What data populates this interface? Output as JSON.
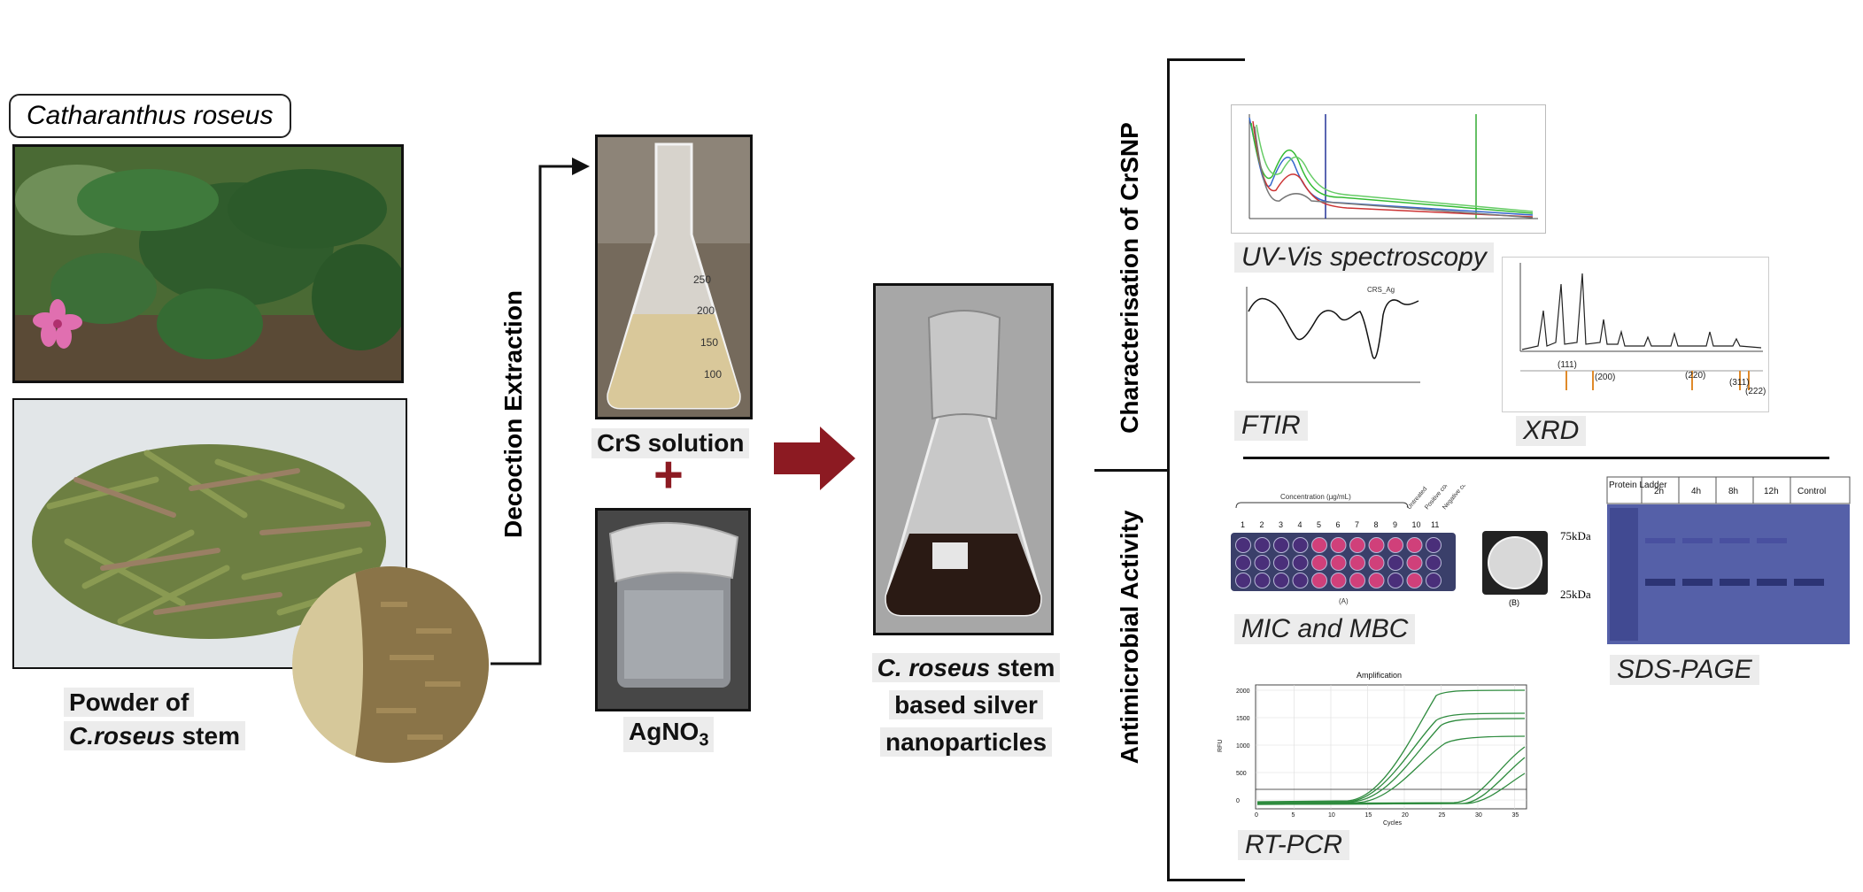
{
  "plant_label": "Catharanthus roseus",
  "powder_caption": {
    "line1": "Powder of",
    "line2_italic": "C.roseus",
    "line2_rest": " stem"
  },
  "extraction_label": "Decoction Extraction",
  "crs_caption": "CrS solution",
  "agno3_caption": {
    "base": "AgNO",
    "sub": "3"
  },
  "plus_sign": "+",
  "flask_marks": {
    "m250": "250",
    "m200": "200",
    "m150": "150",
    "m100": "100"
  },
  "product_caption": {
    "line1_italic": "C. roseus",
    "line1_rest": " stem",
    "line2": "based silver",
    "line3": "nanoparticles"
  },
  "characterisation_label": "Characterisation of CrSNP",
  "antimicrobial_label": "Antimicrobial Activity",
  "uvvis_label": "UV-Vis spectroscopy",
  "ftir_label": "FTIR",
  "ftir_title": "CRS_Ag",
  "xrd_label": "XRD",
  "xrd_peaks": [
    "(111)",
    "(200)",
    "(220)",
    "(311)",
    "(222)"
  ],
  "mic_label": "MIC and MBC",
  "mic_header": "Concentration (µg/mL)",
  "mic_columns": [
    "1",
    "2",
    "3",
    "4",
    "5",
    "6",
    "7",
    "8",
    "9",
    "10",
    "11"
  ],
  "mic_controls": [
    "Untreated",
    "Positive control",
    "Negative control"
  ],
  "mic_panel_a": "(A)",
  "mic_panel_b": "(B)",
  "sds_label": "SDS-PAGE",
  "sds_columns": [
    "Protein Ladder",
    "2h",
    "4h",
    "8h",
    "12h",
    "Control"
  ],
  "sds_markers": [
    "75kDa",
    "25kDa"
  ],
  "rtpcr_label": "RT-PCR",
  "rtpcr_title": "Amplification",
  "rtpcr_xlabel": "Cycles",
  "rtpcr_ylabel": "RFU",
  "rtpcr_yticks": [
    "2000",
    "1500",
    "1000",
    "500",
    "0"
  ],
  "rtpcr_xticks": [
    "0",
    "5",
    "10",
    "15",
    "20",
    "25",
    "30",
    "35"
  ],
  "colors": {
    "arrow_red": "#8c1a22",
    "gel_blue": "#5560a8",
    "well_purple": "#4a2f7a",
    "well_pink": "#d0407a",
    "curve_green": "#2e8b3e"
  }
}
